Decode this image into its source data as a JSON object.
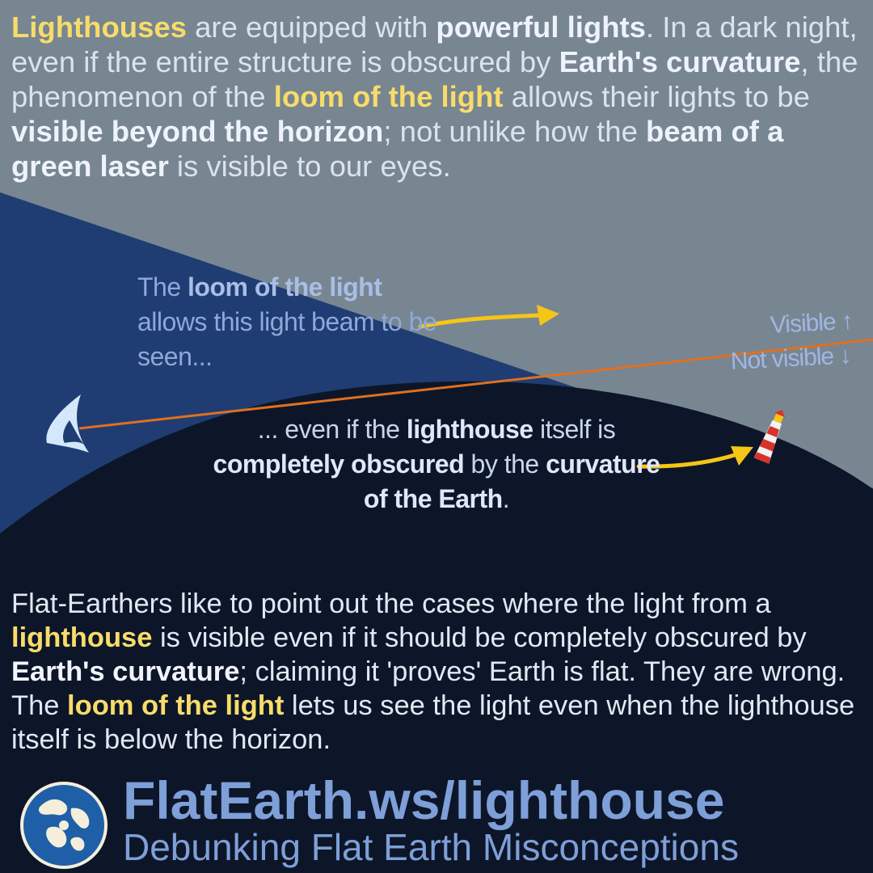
{
  "intro": {
    "p1": "Lighthouses",
    "p2": " are equipped with ",
    "p3": "powerful lights",
    "p4": ". In a dark night, even if the entire structure is obscured by ",
    "p5": "Earth's curvature",
    "p6": ", the phenomenon of the ",
    "p7": "loom of the light",
    "p8": " allows their lights to be ",
    "p9": "visible beyond the horizon",
    "p10": "; not unlike how the ",
    "p11": "beam of a green laser",
    "p12": " is visible to our eyes."
  },
  "diagram": {
    "top_caption": {
      "p1": "The ",
      "p2": "loom of the light",
      "p3": " allows this light beam to be seen..."
    },
    "bottom_caption": {
      "p1": "... even if the ",
      "p2": "lighthouse",
      "p3": " itself is ",
      "p4": "completely obscured",
      "p5": " by the ",
      "p6": "curvature of the Earth",
      "p7": "."
    },
    "visible_label": "Visible ↑",
    "not_visible_label": "Not visible ↓",
    "colors": {
      "sky": "#1f3d72",
      "earth": "#0d1628",
      "beam": "#7a8893",
      "sightline": "#e0701f",
      "arrow": "#f5c518",
      "eye": "#d4e8fb"
    },
    "icons": [
      "eye-icon",
      "lighthouse-icon",
      "arrow-icon",
      "arrow-icon"
    ]
  },
  "outro": {
    "p1": "Flat-Earthers like to point out the cases where the light from a ",
    "p2": "lighthouse",
    "p3": " is visible even if it should be completely obscured by ",
    "p4": "Earth's curvature",
    "p5": "; claiming it 'proves' Earth is flat. They are wrong. The ",
    "p6": "loom of the light",
    "p7": " lets us see the light even when the lighthouse itself is below the horizon."
  },
  "footer": {
    "title": "FlatEarth.ws/lighthouse",
    "subtitle": "Debunking Flat Earth Misconceptions",
    "logo_icon": "globe-logo-icon"
  }
}
